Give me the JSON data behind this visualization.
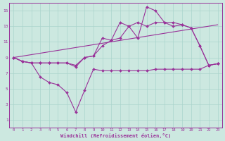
{
  "xlabel": "Windchill (Refroidissement éolien,°C)",
  "bg_color": "#cce8e0",
  "line_color": "#993399",
  "grid_color": "#aad4cc",
  "xlim": [
    -0.5,
    23.5
  ],
  "ylim": [
    0,
    16
  ],
  "xticks": [
    0,
    1,
    2,
    3,
    4,
    5,
    6,
    7,
    8,
    9,
    10,
    11,
    12,
    13,
    14,
    15,
    16,
    17,
    18,
    19,
    20,
    21,
    22,
    23
  ],
  "yticks": [
    1,
    3,
    5,
    7,
    9,
    11,
    13,
    15
  ],
  "series_low_x": [
    0,
    1,
    2,
    3,
    4,
    5,
    6,
    7,
    8,
    9,
    10,
    11,
    12,
    13,
    14,
    15,
    16,
    17,
    18,
    19,
    20,
    21,
    22,
    23
  ],
  "series_low_y": [
    9.0,
    8.5,
    8.3,
    6.5,
    5.8,
    5.5,
    4.5,
    2.0,
    4.8,
    7.5,
    7.3,
    7.3,
    7.3,
    7.3,
    7.3,
    7.3,
    7.5,
    7.5,
    7.5,
    7.5,
    7.5,
    7.5,
    8.0,
    8.2
  ],
  "series_high_x": [
    0,
    1,
    2,
    3,
    4,
    5,
    6,
    7,
    8,
    9,
    10,
    11,
    12,
    13,
    14,
    15,
    16,
    17,
    18,
    19,
    20,
    21,
    22,
    23
  ],
  "series_high_y": [
    9.0,
    8.5,
    8.3,
    8.3,
    8.3,
    8.3,
    8.3,
    7.8,
    9.0,
    9.2,
    11.5,
    11.2,
    13.5,
    13.0,
    11.5,
    15.5,
    15.0,
    13.5,
    13.5,
    13.2,
    12.8,
    10.5,
    8.0,
    8.2
  ],
  "series_mid_x": [
    0,
    1,
    2,
    3,
    4,
    5,
    6,
    7,
    8,
    9,
    10,
    11,
    12,
    13,
    14,
    15,
    16,
    17,
    18,
    19,
    20,
    21,
    22,
    23
  ],
  "series_mid_y": [
    9.0,
    8.5,
    8.3,
    8.3,
    8.3,
    8.3,
    8.3,
    8.0,
    9.0,
    9.2,
    10.5,
    11.2,
    11.5,
    13.0,
    13.5,
    13.0,
    13.5,
    13.5,
    13.0,
    13.2,
    12.8,
    10.5,
    8.0,
    8.2
  ],
  "trend_x": [
    0,
    23
  ],
  "trend_y": [
    9.0,
    13.2
  ],
  "marker": "D",
  "markersize": 2.0,
  "linewidth": 0.8
}
